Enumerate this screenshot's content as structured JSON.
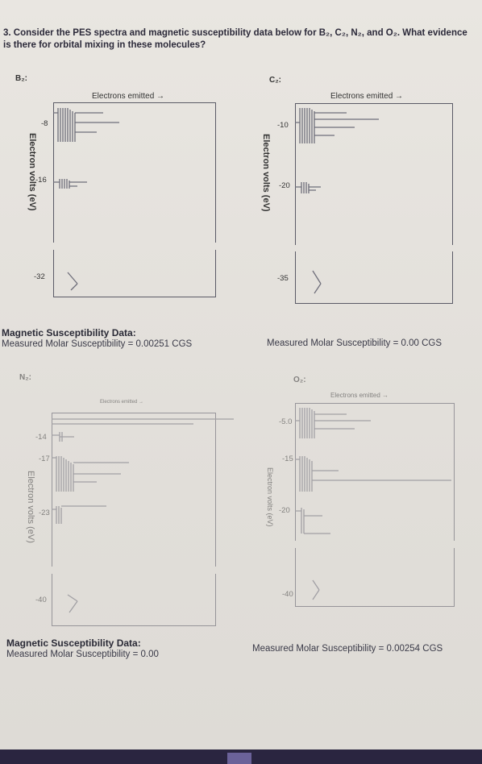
{
  "question": {
    "number": "3.",
    "text": "Consider the PES spectra and magnetic susceptibility data below for B₂, C₂, N₂, and O₂. What evidence is there for orbital mixing in these molecules?"
  },
  "panels": {
    "b2": {
      "title": "B₂:",
      "xaxis": "Electrons emitted →",
      "yaxis": "Electron volts (eV)",
      "ticks": [
        "-8",
        "-16",
        "-32"
      ]
    },
    "c2": {
      "title": "C₂:",
      "xaxis": "Electrons emitted →",
      "yaxis": "Electron volts (eV)",
      "ticks": [
        "-10",
        "-20",
        "-35"
      ]
    },
    "n2": {
      "title": "N₂:",
      "xaxis": "Electrons emitted →",
      "yaxis": "Electron volts (eV)",
      "ticks": [
        "-14",
        "-17",
        "-23",
        "-40"
      ]
    },
    "o2": {
      "title": "O₂:",
      "xaxis": "Electrons emitted →",
      "yaxis": "Electron volts (eV)",
      "ticks": [
        "-5.0",
        "-15",
        "-20",
        "-40"
      ]
    }
  },
  "magnetic": {
    "b2_title": "Magnetic Susceptibility Data:",
    "b2_value": "Measured Molar Susceptibility = 0.00251 CGS",
    "c2_value": "Measured Molar Susceptibility = 0.00 CGS",
    "n2_title": "Magnetic Susceptibility Data:",
    "n2_value": "Measured Molar Susceptibility = 0.00",
    "o2_value": "Measured Molar Susceptibility = 0.00254 CGS"
  }
}
